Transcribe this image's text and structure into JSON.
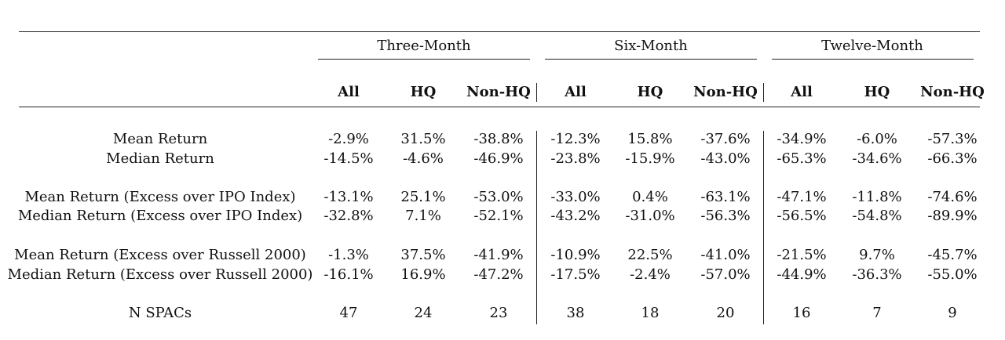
{
  "table": {
    "groups": [
      "Three-Month",
      "Six-Month",
      "Twelve-Month"
    ],
    "columns": [
      "All",
      "HQ",
      "Non-HQ",
      "All",
      "HQ",
      "Non-HQ",
      "All",
      "HQ",
      "Non-HQ"
    ],
    "rows": [
      {
        "label": "Mean Return",
        "values": [
          "-2.9%",
          "31.5%",
          "-38.8%",
          "-12.3%",
          "15.8%",
          "-37.6%",
          "-34.9%",
          "-6.0%",
          "-57.3%"
        ]
      },
      {
        "label": "Median Return",
        "values": [
          "-14.5%",
          "-4.6%",
          "-46.9%",
          "-23.8%",
          "-15.9%",
          "-43.0%",
          "-65.3%",
          "-34.6%",
          "-66.3%"
        ]
      },
      {
        "label": "Mean Return (Excess over IPO Index)",
        "values": [
          "-13.1%",
          "25.1%",
          "-53.0%",
          "-33.0%",
          "0.4%",
          "-63.1%",
          "-47.1%",
          "-11.8%",
          "-74.6%"
        ]
      },
      {
        "label": "Median Return (Excess over IPO Index)",
        "values": [
          "-32.8%",
          "7.1%",
          "-52.1%",
          "-43.2%",
          "-31.0%",
          "-56.3%",
          "-56.5%",
          "-54.8%",
          "-89.9%"
        ]
      },
      {
        "label": "Mean Return (Excess over Russell 2000)",
        "values": [
          "-1.3%",
          "37.5%",
          "-41.9%",
          "-10.9%",
          "22.5%",
          "-41.0%",
          "-21.5%",
          "9.7%",
          "-45.7%"
        ]
      },
      {
        "label": "Median Return (Excess over Russell 2000)",
        "values": [
          "-16.1%",
          "16.9%",
          "-47.2%",
          "-17.5%",
          "-2.4%",
          "-57.0%",
          "-44.9%",
          "-36.3%",
          "-55.0%"
        ]
      },
      {
        "label": "N SPACs",
        "values": [
          "47",
          "24",
          "23",
          "38",
          "18",
          "20",
          "16",
          "7",
          "9"
        ]
      }
    ]
  }
}
